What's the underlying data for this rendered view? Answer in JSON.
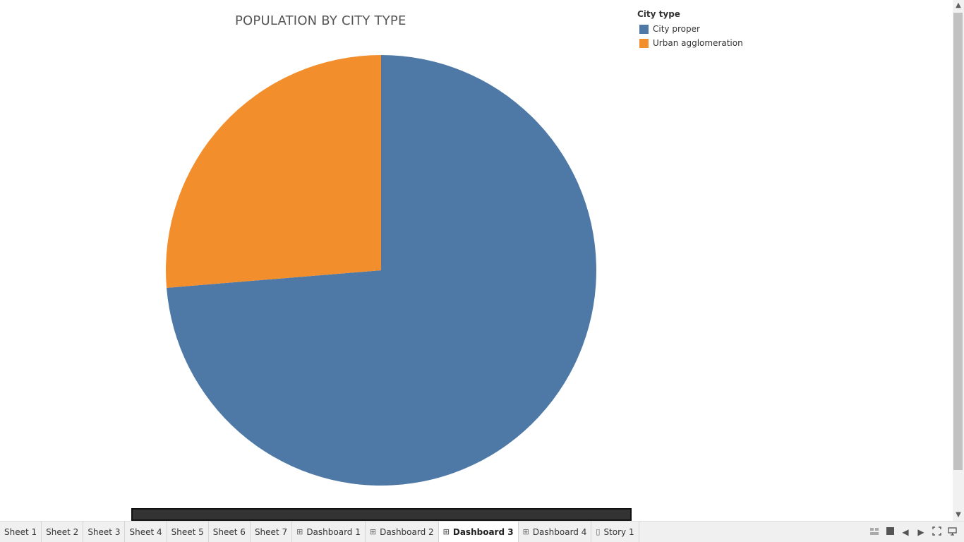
{
  "dashboard": {
    "title": "POPULATION BY CITY TYPE"
  },
  "legend": {
    "title": "City type",
    "items": [
      {
        "label": "City proper",
        "color": "#4e79a7"
      },
      {
        "label": "Urban agglomeration",
        "color": "#f28e2b"
      }
    ]
  },
  "chart_data": {
    "type": "pie",
    "title": "POPULATION BY CITY TYPE",
    "categories": [
      "City proper",
      "Urban agglomeration"
    ],
    "values": [
      73.7,
      26.3
    ],
    "colors": [
      "#4e79a7",
      "#f28e2b"
    ],
    "legend": "top-right"
  },
  "tabs": [
    {
      "label": "Sheet 1",
      "icon": "",
      "active": false
    },
    {
      "label": "Sheet 2",
      "icon": "",
      "active": false
    },
    {
      "label": "Sheet 3",
      "icon": "",
      "active": false
    },
    {
      "label": "Sheet 4",
      "icon": "",
      "active": false
    },
    {
      "label": "Sheet 5",
      "icon": "",
      "active": false
    },
    {
      "label": "Sheet 6",
      "icon": "",
      "active": false
    },
    {
      "label": "Sheet 7",
      "icon": "",
      "active": false
    },
    {
      "label": "Dashboard 1",
      "icon": "dashboard-icon",
      "active": false
    },
    {
      "label": "Dashboard 2",
      "icon": "dashboard-icon",
      "active": false
    },
    {
      "label": "Dashboard 3",
      "icon": "dashboard-icon",
      "active": true
    },
    {
      "label": "Dashboard 4",
      "icon": "dashboard-icon",
      "active": false
    },
    {
      "label": "Story 1",
      "icon": "story-icon",
      "active": false
    }
  ],
  "toolbar": {
    "icons": [
      "show-sheet-sorter-icon",
      "show-filmstrip-icon",
      "previous-sheet-icon",
      "next-sheet-icon",
      "presentation-mode-icon",
      "device-preview-icon"
    ]
  }
}
